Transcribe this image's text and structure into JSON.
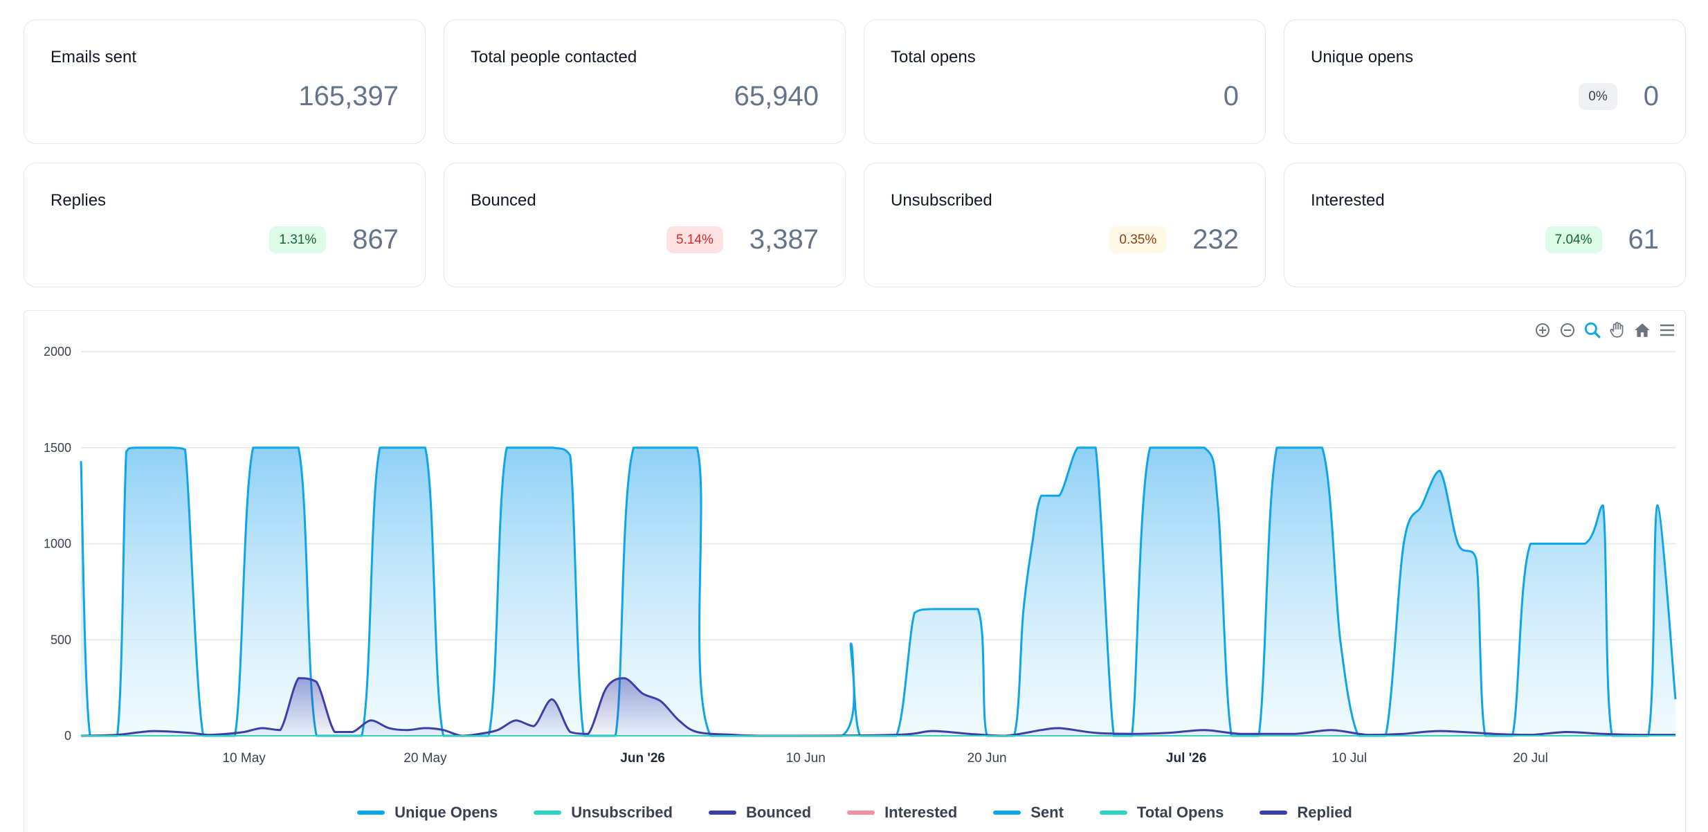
{
  "stats": [
    {
      "title": "Emails sent",
      "value": "165,397",
      "badge": null
    },
    {
      "title": "Total people contacted",
      "value": "65,940",
      "badge": null
    },
    {
      "title": "Total opens",
      "value": "0",
      "badge": null
    },
    {
      "title": "Unique opens",
      "value": "0",
      "badge": "0%",
      "badge_bg": "#eef0f3",
      "badge_color": "#374151"
    },
    {
      "title": "Replies",
      "value": "867",
      "badge": "1.31%",
      "badge_bg": "#dcfce7",
      "badge_color": "#166534"
    },
    {
      "title": "Bounced",
      "value": "3,387",
      "badge": "5.14%",
      "badge_bg": "#fee2e2",
      "badge_color": "#dc2626"
    },
    {
      "title": "Unsubscribed",
      "value": "232",
      "badge": "0.35%",
      "badge_bg": "#fef9e7",
      "badge_color": "#92400e"
    },
    {
      "title": "Interested",
      "value": "61",
      "badge": "7.04%",
      "badge_bg": "#dcfce7",
      "badge_color": "#166534"
    }
  ],
  "toolbar": [
    "zoom-in-icon",
    "zoom-out-icon",
    "zoom-selection-icon",
    "pan-hand-icon",
    "home-reset-icon",
    "menu-icon"
  ],
  "chart_data": {
    "type": "area",
    "x_range": [
      "2026-05-01",
      "2026-07-28"
    ],
    "ylim": [
      0,
      2000
    ],
    "yticks": [
      "0",
      "500",
      "1000",
      "1500",
      "2000"
    ],
    "xticks": [
      {
        "date": "2026-05-10",
        "label": "10 May",
        "bold": false
      },
      {
        "date": "2026-05-20",
        "label": "20 May",
        "bold": false
      },
      {
        "date": "2026-06-01",
        "label": "Jun '26",
        "bold": true
      },
      {
        "date": "2026-06-10",
        "label": "10 Jun",
        "bold": false
      },
      {
        "date": "2026-06-20",
        "label": "20 Jun",
        "bold": false
      },
      {
        "date": "2026-07-01",
        "label": "Jul '26",
        "bold": true
      },
      {
        "date": "2026-07-10",
        "label": "10 Jul",
        "bold": false
      },
      {
        "date": "2026-07-20",
        "label": "20 Jul",
        "bold": false
      }
    ],
    "grid": true,
    "legend_position": "bottom",
    "series": [
      {
        "name": "Unique Opens",
        "color": "#0ea5e9",
        "values": []
      },
      {
        "name": "Unsubscribed",
        "color": "#2dd4bf",
        "values": []
      },
      {
        "name": "Bounced",
        "color": "#3b3fa8",
        "values": []
      },
      {
        "name": "Interested",
        "color": "#f48fa1",
        "values": []
      },
      {
        "name": "Sent",
        "color": "#0ea5e9",
        "values": [
          [
            "2026-05-01",
            1430
          ],
          [
            "2026-05-01T12",
            0
          ],
          [
            "2026-05-03",
            0
          ],
          [
            "2026-05-03T12",
            1480
          ],
          [
            "2026-05-04",
            1500
          ],
          [
            "2026-05-06",
            1500
          ],
          [
            "2026-05-06T18",
            1490
          ],
          [
            "2026-05-07T18",
            0
          ],
          [
            "2026-05-09T12",
            0
          ],
          [
            "2026-05-10T12",
            1500
          ],
          [
            "2026-05-13",
            1500
          ],
          [
            "2026-05-14",
            0
          ],
          [
            "2026-05-16T12",
            0
          ],
          [
            "2026-05-17T12",
            1500
          ],
          [
            "2026-05-20",
            1500
          ],
          [
            "2026-05-21",
            0
          ],
          [
            "2026-05-23T12",
            0
          ],
          [
            "2026-05-24T12",
            1500
          ],
          [
            "2026-05-27",
            1500
          ],
          [
            "2026-05-28",
            1460
          ],
          [
            "2026-05-28T18",
            0
          ],
          [
            "2026-05-30T12",
            0
          ],
          [
            "2026-05-31T12",
            1500
          ],
          [
            "2026-06-04",
            1500
          ],
          [
            "2026-06-04T18",
            0
          ],
          [
            "2026-06-12",
            0
          ],
          [
            "2026-06-12T12",
            480
          ],
          [
            "2026-06-13",
            0
          ],
          [
            "2026-06-15",
            0
          ],
          [
            "2026-06-16",
            640
          ],
          [
            "2026-06-17",
            660
          ],
          [
            "2026-06-19T12",
            660
          ],
          [
            "2026-06-20",
            0
          ],
          [
            "2026-06-21T12",
            0
          ],
          [
            "2026-06-22",
            640
          ],
          [
            "2026-06-22T12",
            1000
          ],
          [
            "2026-06-23",
            1250
          ],
          [
            "2026-06-24",
            1250
          ],
          [
            "2026-06-25",
            1500
          ],
          [
            "2026-06-26",
            1500
          ],
          [
            "2026-06-27",
            0
          ],
          [
            "2026-06-28",
            0
          ],
          [
            "2026-06-29",
            1500
          ],
          [
            "2026-07-02",
            1500
          ],
          [
            "2026-07-02T18",
            1200
          ],
          [
            "2026-07-03T12",
            0
          ],
          [
            "2026-07-05",
            0
          ],
          [
            "2026-07-06",
            1500
          ],
          [
            "2026-07-08T12",
            1500
          ],
          [
            "2026-07-09T12",
            500
          ],
          [
            "2026-07-10T12",
            0
          ],
          [
            "2026-07-12",
            0
          ],
          [
            "2026-07-13",
            1000
          ],
          [
            "2026-07-14",
            1200
          ],
          [
            "2026-07-15",
            1380
          ],
          [
            "2026-07-16",
            1000
          ],
          [
            "2026-07-17",
            920
          ],
          [
            "2026-07-17T12",
            0
          ],
          [
            "2026-07-19",
            0
          ],
          [
            "2026-07-20",
            1000
          ],
          [
            "2026-07-23",
            1000
          ],
          [
            "2026-07-24",
            1200
          ],
          [
            "2026-07-24T12",
            0
          ],
          [
            "2026-07-26T12",
            0
          ],
          [
            "2026-07-27",
            1200
          ],
          [
            "2026-07-28",
            190
          ]
        ]
      },
      {
        "name": "Total Opens",
        "color": "#2dd4bf",
        "values": []
      },
      {
        "name": "Replied",
        "color": "#3b3fa8",
        "values": [
          [
            "2026-05-01",
            0
          ],
          [
            "2026-05-03",
            5
          ],
          [
            "2026-05-05",
            25
          ],
          [
            "2026-05-07",
            15
          ],
          [
            "2026-05-08",
            5
          ],
          [
            "2026-05-09",
            10
          ],
          [
            "2026-05-10",
            20
          ],
          [
            "2026-05-11",
            40
          ],
          [
            "2026-05-12",
            30
          ],
          [
            "2026-05-13",
            300
          ],
          [
            "2026-05-14",
            280
          ],
          [
            "2026-05-15",
            20
          ],
          [
            "2026-05-16",
            20
          ],
          [
            "2026-05-17",
            80
          ],
          [
            "2026-05-18",
            40
          ],
          [
            "2026-05-19",
            30
          ],
          [
            "2026-05-20",
            40
          ],
          [
            "2026-05-21",
            30
          ],
          [
            "2026-05-22",
            0
          ],
          [
            "2026-05-23",
            10
          ],
          [
            "2026-05-24",
            30
          ],
          [
            "2026-05-25",
            80
          ],
          [
            "2026-05-26",
            50
          ],
          [
            "2026-05-27",
            190
          ],
          [
            "2026-05-28",
            20
          ],
          [
            "2026-05-29",
            10
          ],
          [
            "2026-05-30",
            250
          ],
          [
            "2026-05-31",
            300
          ],
          [
            "2026-06-01",
            220
          ],
          [
            "2026-06-02",
            180
          ],
          [
            "2026-06-03",
            80
          ],
          [
            "2026-06-04",
            20
          ],
          [
            "2026-06-06",
            5
          ],
          [
            "2026-06-08",
            0
          ],
          [
            "2026-06-15",
            5
          ],
          [
            "2026-06-17",
            25
          ],
          [
            "2026-06-19",
            10
          ],
          [
            "2026-06-21",
            0
          ],
          [
            "2026-06-23",
            30
          ],
          [
            "2026-06-24",
            40
          ],
          [
            "2026-06-26",
            15
          ],
          [
            "2026-06-28",
            10
          ],
          [
            "2026-06-30",
            15
          ],
          [
            "2026-07-02",
            30
          ],
          [
            "2026-07-04",
            10
          ],
          [
            "2026-07-07",
            10
          ],
          [
            "2026-07-09",
            30
          ],
          [
            "2026-07-11",
            5
          ],
          [
            "2026-07-13",
            10
          ],
          [
            "2026-07-15",
            25
          ],
          [
            "2026-07-18",
            10
          ],
          [
            "2026-07-20",
            5
          ],
          [
            "2026-07-22",
            20
          ],
          [
            "2026-07-24",
            10
          ],
          [
            "2026-07-26",
            5
          ],
          [
            "2026-07-28",
            5
          ]
        ]
      }
    ]
  }
}
